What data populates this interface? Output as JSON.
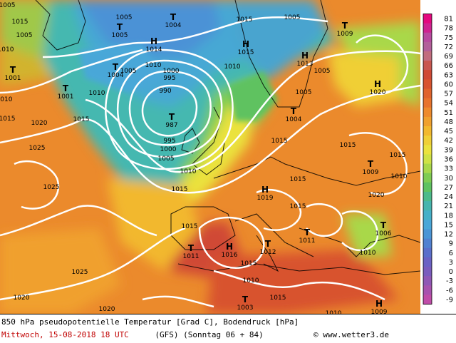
{
  "legend": {
    "ticks": [
      "81",
      "78",
      "75",
      "72",
      "69",
      "66",
      "63",
      "60",
      "57",
      "54",
      "51",
      "48",
      "45",
      "42",
      "39",
      "36",
      "33",
      "30",
      "27",
      "24",
      "21",
      "18",
      "15",
      "12",
      "9",
      "6",
      "3",
      "0",
      "-3",
      "-6",
      "-9"
    ],
    "colors": [
      "#e4097f",
      "#cf2390",
      "#b84a9f",
      "#b35f9a",
      "#c26d7e",
      "#c9574f",
      "#d04a35",
      "#d8532f",
      "#e0632c",
      "#e8732c",
      "#ee8a2c",
      "#f0a02e",
      "#f2b82e",
      "#f0cf36",
      "#ebe23d",
      "#cfe245",
      "#a9d84a",
      "#7fcc52",
      "#5fc260",
      "#4cba8a",
      "#46b5ad",
      "#45b0c8",
      "#4aa7d8",
      "#4b95d6",
      "#5181d1",
      "#5b6fcb",
      "#6b62c4",
      "#7a5cbd",
      "#9057b5",
      "#a852ae",
      "#c04da8"
    ]
  },
  "footer": {
    "line1": "850 hPa pseudopotentielle Temperatur [Grad C], Bodendruck [hPa]",
    "date": "Mittwoch, 15-08-2018  18 UTC",
    "model": "(GFS)  (Sonntag 06 + 84)",
    "copyright": "© www.wetter3.de"
  },
  "pressure_centers": [
    {
      "letter": "T",
      "value": "1005"
    },
    {
      "letter": "T",
      "value": "1004"
    },
    {
      "letter": "H",
      "value": "1014"
    },
    {
      "letter": "H",
      "value": "1015"
    },
    {
      "letter": "T",
      "value": "1009"
    },
    {
      "letter": "T",
      "value": "1001"
    },
    {
      "letter": "T",
      "value": "1001"
    },
    {
      "letter": "T",
      "value": "1004"
    },
    {
      "letter": "T",
      "value": "987"
    },
    {
      "letter": "H",
      "value": "1013"
    },
    {
      "letter": "H",
      "value": "1020"
    },
    {
      "letter": "T",
      "value": "1004"
    },
    {
      "letter": "T",
      "value": "1009"
    },
    {
      "letter": "H",
      "value": "1019"
    },
    {
      "letter": "T",
      "value": "1011"
    },
    {
      "letter": "H",
      "value": "1016"
    },
    {
      "letter": "T",
      "value": "1012"
    },
    {
      "letter": "T",
      "value": "1011"
    },
    {
      "letter": "T",
      "value": "1006"
    },
    {
      "letter": "T",
      "value": "1003"
    },
    {
      "letter": "H",
      "value": "1009"
    }
  ],
  "isobar_labels": [
    "1015",
    "1005",
    "1010",
    "1005",
    "1015",
    "1005",
    "1005",
    "1010",
    "1010",
    "1005",
    "1000",
    "995",
    "990",
    "1010",
    "1015",
    "1010",
    "1005",
    "1000",
    "995",
    "1005",
    "1020",
    "1015",
    "1025",
    "1010",
    "1015",
    "1025",
    "1015",
    "1015",
    "1015",
    "1020",
    "1015",
    "1015",
    "1010",
    "1025",
    "1015",
    "1020",
    "1010",
    "1020",
    "1010",
    "1015",
    "1010",
    "1015",
    "1005"
  ]
}
